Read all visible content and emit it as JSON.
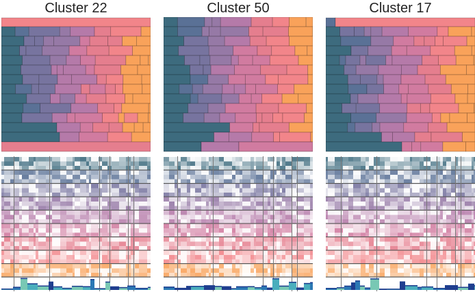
{
  "chart_data": [
    {
      "type": "heatmap",
      "title": "Cluster 22"
    },
    {
      "type": "heatmap",
      "title": "Cluster 50"
    },
    {
      "type": "heatmap",
      "title": "Cluster 17"
    }
  ],
  "palette": [
    "#3d6b7e",
    "#5a7196",
    "#77749f",
    "#9679a6",
    "#b57aa9",
    "#d17ba0",
    "#e57e8e",
    "#f2858a",
    "#f9a25a"
  ],
  "bar_colors": [
    "#78c8b4",
    "#4aaebd",
    "#2b78b4",
    "#1f3e8f"
  ]
}
